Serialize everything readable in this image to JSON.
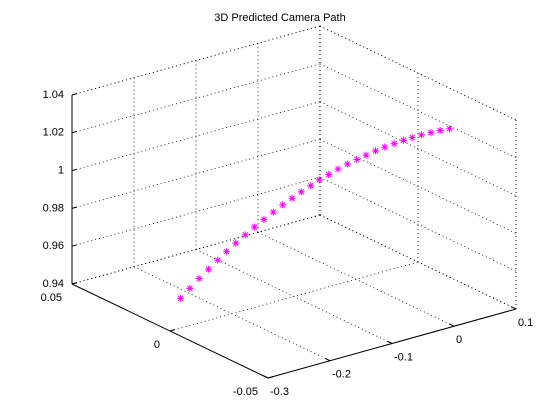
{
  "chart_data": {
    "type": "scatter3d",
    "title": "3D Predicted Camera Path",
    "color": "#ff00ff",
    "grid": true,
    "xlim": [
      -0.3,
      0.1
    ],
    "ylim": [
      -0.05,
      0.05
    ],
    "zlim": [
      0.94,
      1.04
    ],
    "xticks": [
      -0.3,
      -0.2,
      -0.1,
      0,
      0.1
    ],
    "yticks": [
      -0.05,
      0,
      0.05
    ],
    "zticks": [
      0.94,
      0.96,
      0.98,
      1,
      1.02,
      1.04
    ],
    "x": [
      -0.28,
      -0.267,
      -0.254,
      -0.241,
      -0.228,
      -0.216,
      -0.203,
      -0.19,
      -0.177,
      -0.164,
      -0.151,
      -0.138,
      -0.125,
      -0.112,
      -0.099,
      -0.087,
      -0.074,
      -0.061,
      -0.048,
      -0.035,
      -0.022,
      -0.009,
      0.004,
      0.017,
      0.03,
      0.042,
      0.055,
      0.068,
      0.081,
      0.094
    ],
    "y": [
      0.001,
      0.0003,
      -0.0003,
      -0.001,
      -0.0016,
      -0.0023,
      -0.0029,
      -0.0036,
      -0.0042,
      -0.0049,
      -0.0056,
      -0.0062,
      -0.0069,
      -0.0075,
      -0.0082,
      -0.0088,
      -0.0095,
      -0.0101,
      -0.0108,
      -0.0115,
      -0.0121,
      -0.0128,
      -0.0134,
      -0.0141,
      -0.0147,
      -0.0154,
      -0.016,
      -0.0167,
      -0.0173,
      -0.018
    ],
    "z": [
      0.955,
      0.9594,
      0.9637,
      0.9678,
      0.9717,
      0.9755,
      0.9791,
      0.9826,
      0.9859,
      0.9891,
      0.9921,
      0.995,
      0.9977,
      1.0002,
      1.0026,
      1.0049,
      1.0069,
      1.0089,
      1.0107,
      1.0123,
      1.0137,
      1.0151,
      1.0162,
      1.0172,
      1.0181,
      1.0188,
      1.0193,
      1.0197,
      1.0199,
      1.02
    ]
  }
}
